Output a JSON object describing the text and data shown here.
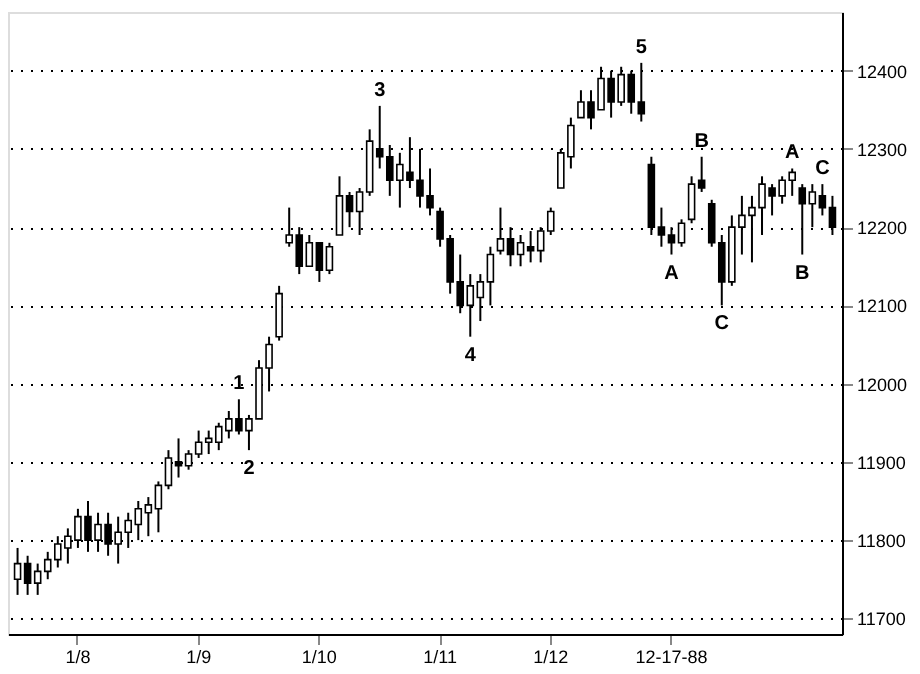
{
  "chart_data": {
    "type": "candlestick",
    "categories": [
      null,
      null,
      null,
      null,
      null,
      null,
      "1/8",
      null,
      null,
      null,
      null,
      null,
      null,
      null,
      null,
      null,
      null,
      null,
      "1/9",
      null,
      null,
      null,
      null,
      null,
      null,
      null,
      null,
      null,
      null,
      null,
      "1/10",
      null,
      null,
      null,
      null,
      null,
      null,
      null,
      null,
      null,
      null,
      null,
      "1/11",
      null,
      null,
      null,
      null,
      null,
      null,
      null,
      null,
      null,
      null,
      "1/12",
      null,
      null,
      null,
      null,
      null,
      null,
      null,
      null,
      null,
      null,
      null,
      "12-17-88",
      null,
      null,
      null,
      null,
      null,
      null,
      null,
      null,
      null,
      null,
      null,
      null,
      null,
      null,
      null,
      null
    ],
    "ohlc": [
      [
        11750,
        11790,
        11730,
        11770
      ],
      [
        11770,
        11780,
        11730,
        11745
      ],
      [
        11745,
        11770,
        11730,
        11760
      ],
      [
        11760,
        11785,
        11750,
        11775
      ],
      [
        11775,
        11805,
        11765,
        11795
      ],
      [
        11790,
        11815,
        11770,
        11805
      ],
      [
        11800,
        11840,
        11790,
        11830
      ],
      [
        11830,
        11850,
        11785,
        11800
      ],
      [
        11800,
        11835,
        11785,
        11820
      ],
      [
        11820,
        11835,
        11780,
        11795
      ],
      [
        11795,
        11830,
        11770,
        11810
      ],
      [
        11810,
        11835,
        11790,
        11825
      ],
      [
        11820,
        11850,
        11800,
        11840
      ],
      [
        11835,
        11855,
        11805,
        11845
      ],
      [
        11840,
        11875,
        11810,
        11870
      ],
      [
        11870,
        11915,
        11865,
        11905
      ],
      [
        11900,
        11930,
        11880,
        11895
      ],
      [
        11895,
        11915,
        11890,
        11910
      ],
      [
        11910,
        11940,
        11905,
        11925
      ],
      [
        11925,
        11940,
        11910,
        11930
      ],
      [
        11925,
        11950,
        11915,
        11945
      ],
      [
        11940,
        11965,
        11930,
        11955
      ],
      [
        11955,
        11980,
        11935,
        11940
      ],
      [
        11940,
        11960,
        11915,
        11955
      ],
      [
        11955,
        12030,
        11955,
        12020
      ],
      [
        12020,
        12060,
        11990,
        12050
      ],
      [
        12060,
        12125,
        12055,
        12115
      ],
      [
        12180,
        12225,
        12175,
        12190
      ],
      [
        12190,
        12200,
        12140,
        12150
      ],
      [
        12150,
        12190,
        12150,
        12180
      ],
      [
        12180,
        12180,
        12130,
        12145
      ],
      [
        12145,
        12180,
        12140,
        12175
      ],
      [
        12190,
        12265,
        12190,
        12240
      ],
      [
        12240,
        12245,
        12200,
        12220
      ],
      [
        12220,
        12250,
        12190,
        12245
      ],
      [
        12245,
        12325,
        12240,
        12310
      ],
      [
        12300,
        12355,
        12275,
        12290
      ],
      [
        12290,
        12305,
        12240,
        12260
      ],
      [
        12260,
        12295,
        12225,
        12280
      ],
      [
        12270,
        12315,
        12250,
        12260
      ],
      [
        12260,
        12300,
        12225,
        12240
      ],
      [
        12240,
        12275,
        12215,
        12225
      ],
      [
        12220,
        12225,
        12175,
        12185
      ],
      [
        12185,
        12190,
        12115,
        12130
      ],
      [
        12130,
        12165,
        12090,
        12100
      ],
      [
        12100,
        12140,
        12060,
        12125
      ],
      [
        12110,
        12140,
        12080,
        12130
      ],
      [
        12130,
        12175,
        12100,
        12165
      ],
      [
        12170,
        12225,
        12165,
        12185
      ],
      [
        12185,
        12200,
        12150,
        12165
      ],
      [
        12165,
        12190,
        12150,
        12180
      ],
      [
        12175,
        12195,
        12155,
        12170
      ],
      [
        12170,
        12200,
        12155,
        12195
      ],
      [
        12195,
        12225,
        12190,
        12220
      ],
      [
        12250,
        12300,
        12250,
        12295
      ],
      [
        12290,
        12340,
        12275,
        12330
      ],
      [
        12340,
        12375,
        12340,
        12360
      ],
      [
        12360,
        12375,
        12325,
        12340
      ],
      [
        12350,
        12405,
        12350,
        12390
      ],
      [
        12390,
        12400,
        12340,
        12360
      ],
      [
        12360,
        12405,
        12355,
        12395
      ],
      [
        12395,
        12400,
        12345,
        12360
      ],
      [
        12360,
        12410,
        12335,
        12345
      ],
      [
        12280,
        12290,
        12190,
        12200
      ],
      [
        12200,
        12225,
        12175,
        12190
      ],
      [
        12190,
        12200,
        12165,
        12180
      ],
      [
        12180,
        12210,
        12175,
        12205
      ],
      [
        12210,
        12265,
        12205,
        12255
      ],
      [
        12260,
        12290,
        12245,
        12250
      ],
      [
        12230,
        12235,
        12175,
        12180
      ],
      [
        12180,
        12190,
        12100,
        12130
      ],
      [
        12130,
        12215,
        12125,
        12200
      ],
      [
        12200,
        12240,
        12165,
        12215
      ],
      [
        12215,
        12240,
        12155,
        12225
      ],
      [
        12225,
        12265,
        12190,
        12255
      ],
      [
        12250,
        12255,
        12215,
        12240
      ],
      [
        12240,
        12265,
        12230,
        12260
      ],
      [
        12260,
        12275,
        12240,
        12270
      ],
      [
        12250,
        12255,
        12165,
        12230
      ],
      [
        12230,
        12255,
        12200,
        12245
      ],
      [
        12240,
        12255,
        12215,
        12225
      ],
      [
        12225,
        12240,
        12190,
        12200
      ]
    ],
    "value_labels": [
      null,
      null,
      null,
      null,
      null,
      null,
      null,
      null,
      null,
      null,
      null,
      null,
      null,
      null,
      null,
      null,
      null,
      null,
      null,
      null,
      null,
      null,
      "1",
      "2",
      null,
      null,
      null,
      null,
      null,
      null,
      null,
      null,
      null,
      null,
      null,
      null,
      "3",
      null,
      null,
      null,
      null,
      null,
      null,
      null,
      null,
      "4",
      null,
      null,
      null,
      null,
      null,
      null,
      null,
      null,
      null,
      null,
      null,
      null,
      null,
      null,
      null,
      null,
      "5",
      null,
      null,
      "A",
      null,
      null,
      "B",
      null,
      "C",
      null,
      null,
      null,
      null,
      null,
      null,
      "A",
      "B",
      null,
      "C",
      null
    ],
    "color": "#000000",
    "ylim": [
      11680,
      12475
    ],
    "yticks": [
      11700,
      11800,
      11900,
      12000,
      12100,
      12200,
      12300,
      12400
    ],
    "grid": "y"
  }
}
